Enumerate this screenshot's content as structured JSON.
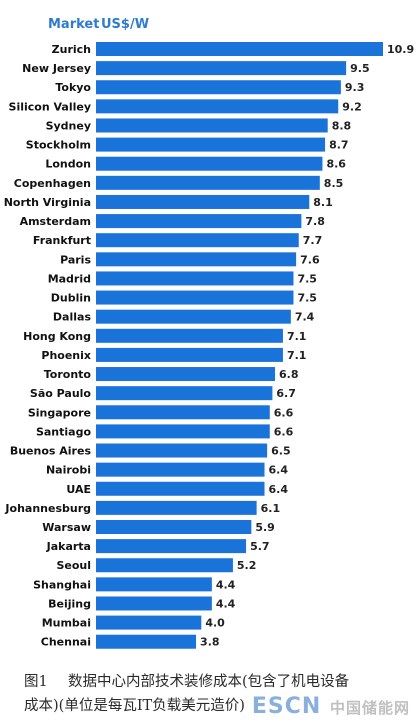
{
  "chart_data": {
    "type": "bar",
    "orientation": "horizontal",
    "header_category": "Market",
    "header_value": "US$/W",
    "categories": [
      "Zurich",
      "New Jersey",
      "Tokyo",
      "Silicon Valley",
      "Sydney",
      "Stockholm",
      "London",
      "Copenhagen",
      "North Virginia",
      "Amsterdam",
      "Frankfurt",
      "Paris",
      "Madrid",
      "Dublin",
      "Dallas",
      "Hong Kong",
      "Phoenix",
      "Toronto",
      "São Paulo",
      "Singapore",
      "Santiago",
      "Buenos Aires",
      "Nairobi",
      "UAE",
      "Johannesburg",
      "Warsaw",
      "Jakarta",
      "Seoul",
      "Shanghai",
      "Beijing",
      "Mumbai",
      "Chennai"
    ],
    "values": [
      10.9,
      9.5,
      9.3,
      9.2,
      8.8,
      8.7,
      8.6,
      8.5,
      8.1,
      7.8,
      7.7,
      7.6,
      7.5,
      7.5,
      7.4,
      7.1,
      7.1,
      6.8,
      6.7,
      6.6,
      6.6,
      6.5,
      6.4,
      6.4,
      6.1,
      5.9,
      5.7,
      5.2,
      4.4,
      4.4,
      4.0,
      3.8
    ],
    "xlim": [
      0,
      10.9
    ],
    "grid": false,
    "bar_color": "#1a73d9",
    "header_color": "#2f7bd0"
  },
  "caption": {
    "figure_number": "图1",
    "text_line1": "数据中心内部技术装修成本(包含了机电设备",
    "text_line2": "成本)(单位是每瓦IT负载美元造价)"
  },
  "watermark": {
    "brand": "ESCN",
    "site": "中国储能网"
  }
}
